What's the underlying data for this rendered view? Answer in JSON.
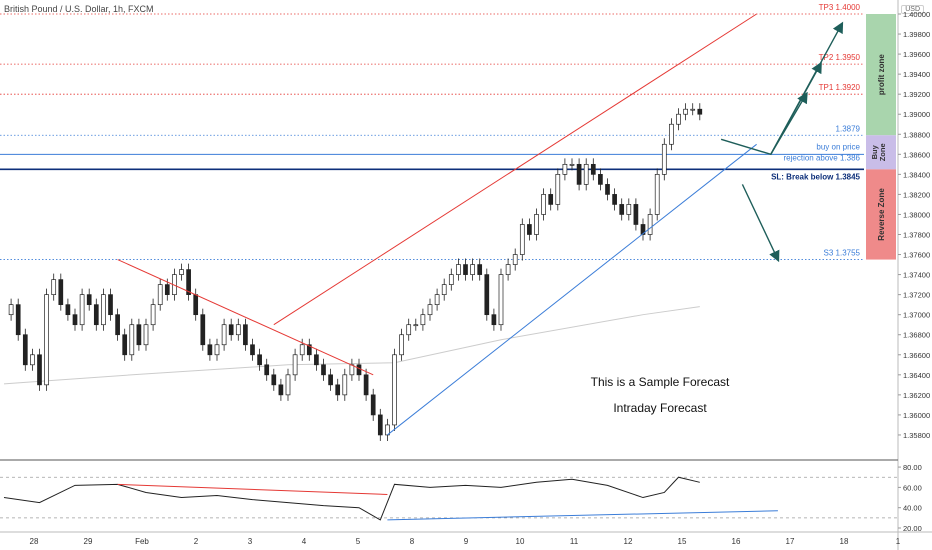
{
  "header": {
    "title": "British Pound / U.S. Dollar, 1h, FXCM",
    "currency": "USD"
  },
  "chart_data": [
    {
      "type": "candlestick",
      "title": "British Pound / U.S. Dollar, 1h, FXCM",
      "ylim": [
        1.356,
        1.4
      ],
      "y_ticks": [
        "1.40000",
        "1.39800",
        "1.39600",
        "1.39400",
        "1.39200",
        "1.39000",
        "1.38800",
        "1.38600",
        "1.38400",
        "1.38200",
        "1.38000",
        "1.37800",
        "1.37600",
        "1.37400",
        "1.37200",
        "1.37000",
        "1.36800",
        "1.36600",
        "1.36400",
        "1.36200",
        "1.36000",
        "1.35800"
      ],
      "x_ticks": [
        "28",
        "29",
        "Feb",
        "2",
        "3",
        "4",
        "5",
        "8",
        "9",
        "10",
        "11",
        "12",
        "15",
        "16",
        "17",
        "18",
        "1"
      ],
      "price_path": [
        [
          0,
          1.37
        ],
        [
          1,
          1.371
        ],
        [
          2,
          1.368
        ],
        [
          3,
          1.365
        ],
        [
          4,
          1.366
        ],
        [
          5,
          1.363
        ],
        [
          6,
          1.372
        ],
        [
          7,
          1.3735
        ],
        [
          8,
          1.371
        ],
        [
          9,
          1.37
        ],
        [
          10,
          1.369
        ],
        [
          11,
          1.372
        ],
        [
          12,
          1.371
        ],
        [
          13,
          1.369
        ],
        [
          14,
          1.372
        ],
        [
          15,
          1.37
        ],
        [
          16,
          1.368
        ],
        [
          17,
          1.366
        ],
        [
          18,
          1.369
        ],
        [
          19,
          1.367
        ],
        [
          20,
          1.369
        ],
        [
          21,
          1.371
        ],
        [
          22,
          1.373
        ],
        [
          23,
          1.372
        ],
        [
          24,
          1.374
        ],
        [
          25,
          1.3745
        ],
        [
          26,
          1.372
        ],
        [
          27,
          1.37
        ],
        [
          28,
          1.367
        ],
        [
          29,
          1.366
        ],
        [
          30,
          1.367
        ],
        [
          31,
          1.369
        ],
        [
          32,
          1.368
        ],
        [
          33,
          1.369
        ],
        [
          34,
          1.367
        ],
        [
          35,
          1.366
        ],
        [
          36,
          1.365
        ],
        [
          37,
          1.364
        ],
        [
          38,
          1.363
        ],
        [
          39,
          1.362
        ],
        [
          40,
          1.364
        ],
        [
          41,
          1.366
        ],
        [
          42,
          1.367
        ],
        [
          43,
          1.366
        ],
        [
          44,
          1.365
        ],
        [
          45,
          1.364
        ],
        [
          46,
          1.363
        ],
        [
          47,
          1.362
        ],
        [
          48,
          1.364
        ],
        [
          49,
          1.365
        ],
        [
          50,
          1.364
        ],
        [
          51,
          1.362
        ],
        [
          52,
          1.36
        ],
        [
          53,
          1.358
        ],
        [
          54,
          1.359
        ],
        [
          55,
          1.366
        ],
        [
          56,
          1.368
        ],
        [
          57,
          1.369
        ],
        [
          58,
          1.369
        ],
        [
          59,
          1.37
        ],
        [
          60,
          1.371
        ],
        [
          61,
          1.372
        ],
        [
          62,
          1.373
        ],
        [
          63,
          1.374
        ],
        [
          64,
          1.375
        ],
        [
          65,
          1.374
        ],
        [
          66,
          1.375
        ],
        [
          67,
          1.374
        ],
        [
          68,
          1.37
        ],
        [
          69,
          1.369
        ],
        [
          70,
          1.374
        ],
        [
          71,
          1.375
        ],
        [
          72,
          1.376
        ],
        [
          73,
          1.379
        ],
        [
          74,
          1.378
        ],
        [
          75,
          1.38
        ],
        [
          76,
          1.382
        ],
        [
          77,
          1.381
        ],
        [
          78,
          1.384
        ],
        [
          79,
          1.385
        ],
        [
          80,
          1.385
        ],
        [
          81,
          1.383
        ],
        [
          82,
          1.385
        ],
        [
          83,
          1.384
        ],
        [
          84,
          1.383
        ],
        [
          85,
          1.382
        ],
        [
          86,
          1.381
        ],
        [
          87,
          1.38
        ],
        [
          88,
          1.381
        ],
        [
          89,
          1.379
        ],
        [
          90,
          1.378
        ],
        [
          91,
          1.38
        ],
        [
          92,
          1.384
        ],
        [
          93,
          1.387
        ],
        [
          94,
          1.389
        ],
        [
          95,
          1.39
        ],
        [
          96,
          1.3905
        ],
        [
          97,
          1.3905
        ],
        [
          98,
          1.39
        ]
      ],
      "moving_average": [
        [
          0,
          1.3631
        ],
        [
          20,
          1.3641
        ],
        [
          40,
          1.365
        ],
        [
          55,
          1.3652
        ],
        [
          70,
          1.3675
        ],
        [
          90,
          1.37
        ],
        [
          98,
          1.3708
        ]
      ],
      "levels": [
        {
          "name": "tp3",
          "label": "TP3 1.4000",
          "value": 1.4,
          "color": "#e53935",
          "style": "dotted"
        },
        {
          "name": "tp2",
          "label": "TP2 1.3950",
          "value": 1.395,
          "color": "#e53935",
          "style": "dotted"
        },
        {
          "name": "tp1",
          "label": "TP1 1.3920",
          "value": 1.392,
          "color": "#e53935",
          "style": "dotted"
        },
        {
          "name": "level-13879",
          "label": "1.3879",
          "value": 1.3879,
          "color": "#3b7dd8",
          "style": "dotted"
        },
        {
          "name": "buy-on-price",
          "label": "buy on price",
          "value": 1.386,
          "color": "#3b7dd8",
          "style": "solid"
        },
        {
          "name": "rejection",
          "label": "rejection above 1.386",
          "value": 1.385,
          "color": "#3b7dd8",
          "style": "none"
        },
        {
          "name": "stop-loss",
          "label": "SL: Break below 1.3845",
          "value": 1.3845,
          "color": "#0d2f7a",
          "style": "solid"
        },
        {
          "name": "s3",
          "label": "S3 1.3755",
          "value": 1.3755,
          "color": "#3b7dd8",
          "style": "dotted"
        }
      ],
      "zones": [
        {
          "name": "profit-zone",
          "label": "profit zone",
          "from": 1.3879,
          "to": 1.4,
          "color": "#a9d5ad"
        },
        {
          "name": "buy-zone",
          "label": "Buy Zone",
          "from": 1.3845,
          "to": 1.3879,
          "color": "#c9bde8"
        },
        {
          "name": "reverse-zone",
          "label": "Reverse Zone",
          "from": 1.3755,
          "to": 1.3845,
          "color": "#ef8a8a"
        }
      ],
      "trendlines": [
        {
          "name": "down-trendline",
          "color": "#e53935",
          "from": [
            16,
            1.3755
          ],
          "to": [
            52,
            1.364
          ]
        },
        {
          "name": "upper-channel",
          "color": "#e53935",
          "from": [
            38,
            1.369
          ],
          "to": [
            106,
            1.4
          ]
        },
        {
          "name": "lower-channel",
          "color": "#3b7dd8",
          "from": [
            54,
            1.358
          ],
          "to": [
            106,
            1.387
          ]
        }
      ],
      "forecast_arrows": [
        {
          "name": "bull-arrow-1",
          "points": [
            [
              101,
              1.3875
            ],
            [
              108,
              1.386
            ],
            [
              113,
              1.392
            ]
          ]
        },
        {
          "name": "bull-arrow-2",
          "points": [
            [
              108,
              1.386
            ],
            [
              115,
              1.395
            ]
          ]
        },
        {
          "name": "bull-arrow-3",
          "points": [
            [
              108,
              1.386
            ],
            [
              118,
              1.399
            ]
          ]
        },
        {
          "name": "bear-arrow",
          "points": [
            [
              104,
              1.383
            ],
            [
              109,
              1.3755
            ]
          ]
        }
      ],
      "annotations": [
        "This is a Sample Forecast",
        "Intraday Forecast"
      ]
    },
    {
      "type": "line",
      "name": "rsi-panel",
      "ylim": [
        20,
        85
      ],
      "y_ticks": [
        "80.00",
        "60.00",
        "40.00",
        "20.00"
      ],
      "values_path": [
        [
          0,
          50
        ],
        [
          5,
          45
        ],
        [
          10,
          62
        ],
        [
          16,
          63
        ],
        [
          20,
          55
        ],
        [
          25,
          50
        ],
        [
          30,
          52
        ],
        [
          35,
          48
        ],
        [
          40,
          45
        ],
        [
          45,
          42
        ],
        [
          50,
          40
        ],
        [
          53,
          28
        ],
        [
          55,
          63
        ],
        [
          60,
          60
        ],
        [
          65,
          62
        ],
        [
          70,
          60
        ],
        [
          75,
          65
        ],
        [
          80,
          68
        ],
        [
          85,
          62
        ],
        [
          90,
          50
        ],
        [
          93,
          55
        ],
        [
          95,
          70
        ],
        [
          98,
          65
        ]
      ],
      "trendlines": [
        {
          "name": "rsi-down-line",
          "color": "#e53935",
          "from": [
            16,
            63
          ],
          "to": [
            54,
            53
          ]
        },
        {
          "name": "rsi-up-line",
          "color": "#3b7dd8",
          "from": [
            54,
            28
          ],
          "to": [
            109,
            37
          ]
        }
      ]
    }
  ]
}
